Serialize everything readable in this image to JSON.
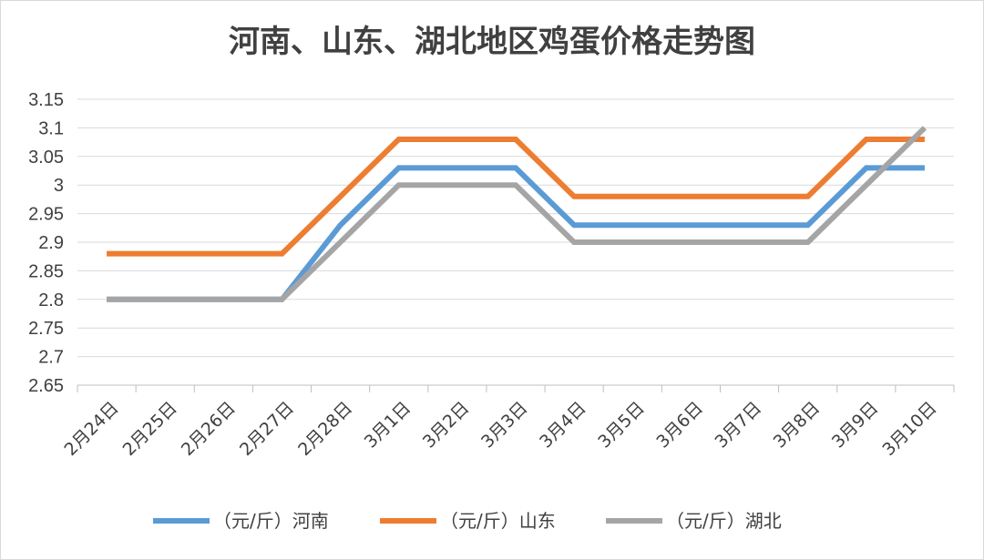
{
  "colors": {
    "henan": "#5b9bd5",
    "shandong": "#ed7d31",
    "hubei": "#a5a5a5"
  },
  "chart_data": {
    "type": "line",
    "title": "河南、山东、湖北地区鸡蛋价格走势图",
    "xlabel": "",
    "ylabel": "",
    "categories": [
      "2月24日",
      "2月25日",
      "2月26日",
      "2月27日",
      "2月28日",
      "3月1日",
      "3月2日",
      "3月3日",
      "3月4日",
      "3月5日",
      "3月6日",
      "3月7日",
      "3月8日",
      "3月9日",
      "3月10日"
    ],
    "ylim": [
      2.65,
      3.15
    ],
    "yticks": [
      "2.65",
      "2.7",
      "2.75",
      "2.8",
      "2.85",
      "2.9",
      "2.95",
      "3",
      "3.05",
      "3.1",
      "3.15"
    ],
    "grid": true,
    "legend_position": "bottom",
    "series": [
      {
        "name": "（元/斤）河南",
        "key": "henan",
        "values": [
          2.8,
          2.8,
          2.8,
          2.8,
          2.93,
          3.03,
          3.03,
          3.03,
          2.93,
          2.93,
          2.93,
          2.93,
          2.93,
          3.03,
          3.03
        ]
      },
      {
        "name": "（元/斤）山东",
        "key": "shandong",
        "values": [
          2.88,
          2.88,
          2.88,
          2.88,
          2.98,
          3.08,
          3.08,
          3.08,
          2.98,
          2.98,
          2.98,
          2.98,
          2.98,
          3.08,
          3.08
        ]
      },
      {
        "name": "（元/斤）湖北",
        "key": "hubei",
        "values": [
          2.8,
          2.8,
          2.8,
          2.8,
          2.9,
          3.0,
          3.0,
          3.0,
          2.9,
          2.9,
          2.9,
          2.9,
          2.9,
          3.0,
          3.1
        ]
      }
    ]
  }
}
